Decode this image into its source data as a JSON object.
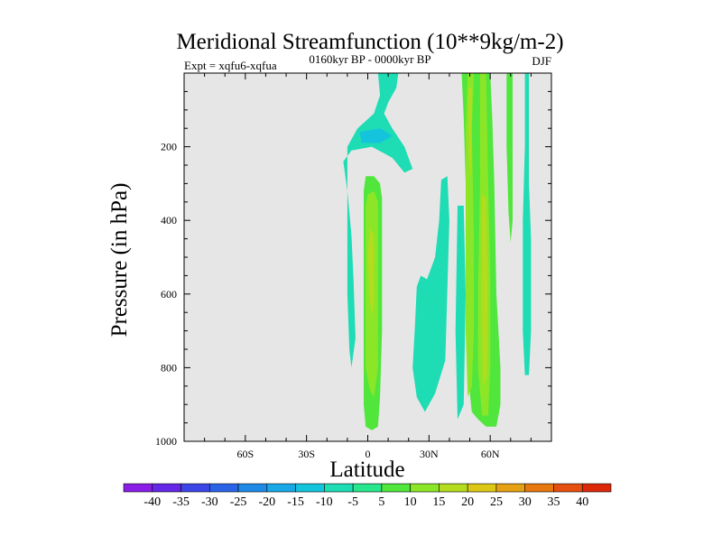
{
  "chart_data": {
    "type": "contour",
    "title": "Meridional Streamfunction (10**9kg/m-2)",
    "left_label": "Expt = xqfu6-xqfua",
    "center_label": "0160kyr BP - 0000kyr BP",
    "right_label": "DJF",
    "xlabel": "Latitude",
    "ylabel": "Pressure (in hPa)",
    "xlim": [
      -90,
      90
    ],
    "ylim": [
      1000,
      0
    ],
    "x_ticks": [
      -60,
      -30,
      0,
      30,
      60
    ],
    "x_tick_labels": [
      "60S",
      "30S",
      "0",
      "30N",
      "60N"
    ],
    "y_ticks": [
      200,
      400,
      600,
      800,
      1000
    ],
    "y_tick_labels": [
      "200",
      "400",
      "600",
      "800",
      "1000"
    ],
    "background_color": "#e6e6e6",
    "colorbar": {
      "colors": [
        "#8a1ee6",
        "#6428e6",
        "#3c46e6",
        "#2a64e6",
        "#1e8ae6",
        "#18a8e6",
        "#14c4dc",
        "#1edcb4",
        "#28e68c",
        "#50e63c",
        "#8ce628",
        "#b4dc1e",
        "#dcc814",
        "#e6a014",
        "#e6780f",
        "#e6500f",
        "#dc2808"
      ],
      "labels": [
        "-40",
        "-35",
        "-30",
        "-25",
        "-20",
        "-15",
        "-10",
        "-5",
        "5",
        "10",
        "15",
        "20",
        "25",
        "30",
        "35",
        "40"
      ]
    },
    "regions": [
      {
        "name": "tropical-upper-neg-region",
        "level": "-10 to -5",
        "color": "#1edcb4",
        "points": [
          [
            5,
            0
          ],
          [
            15,
            0
          ],
          [
            14,
            40
          ],
          [
            10,
            80
          ],
          [
            8,
            110
          ],
          [
            12,
            150
          ],
          [
            18,
            200
          ],
          [
            22,
            260
          ],
          [
            18,
            270
          ],
          [
            12,
            230
          ],
          [
            2,
            200
          ],
          [
            -8,
            210
          ],
          [
            -12,
            240
          ],
          [
            -10,
            320
          ],
          [
            -8,
            440
          ],
          [
            -7,
            560
          ],
          [
            -6,
            720
          ],
          [
            -8,
            800
          ],
          [
            -9,
            750
          ],
          [
            -10,
            600
          ],
          [
            -10,
            400
          ],
          [
            -10,
            200
          ],
          [
            -5,
            150
          ],
          [
            3,
            110
          ],
          [
            6,
            60
          ]
        ]
      },
      {
        "name": "tropical-upper-neg-core",
        "level": "-15 to -10",
        "color": "#14c4dc",
        "points": [
          [
            -4,
            160
          ],
          [
            6,
            150
          ],
          [
            12,
            170
          ],
          [
            6,
            190
          ],
          [
            -3,
            190
          ]
        ]
      },
      {
        "name": "equatorial-pos-region",
        "level": "5 to 10",
        "color": "#50e63c",
        "points": [
          [
            -1,
            280
          ],
          [
            3,
            280
          ],
          [
            6,
            300
          ],
          [
            7,
            340
          ],
          [
            7,
            500
          ],
          [
            7,
            700
          ],
          [
            6,
            880
          ],
          [
            5,
            960
          ],
          [
            2,
            970
          ],
          [
            -1,
            960
          ],
          [
            -2,
            900
          ],
          [
            -2,
            700
          ],
          [
            -2,
            500
          ],
          [
            -2,
            320
          ]
        ]
      },
      {
        "name": "equatorial-pos-mid",
        "level": "10 to 15",
        "color": "#8ce628",
        "points": [
          [
            0,
            330
          ],
          [
            3,
            320
          ],
          [
            5,
            350
          ],
          [
            5,
            550
          ],
          [
            5,
            800
          ],
          [
            3,
            880
          ],
          [
            1,
            860
          ],
          [
            -1,
            800
          ],
          [
            -1,
            550
          ],
          [
            -1,
            360
          ]
        ]
      },
      {
        "name": "equatorial-pos-core",
        "level": "15 to 20",
        "color": "#b4dc1e",
        "points": [
          [
            1,
            420
          ],
          [
            3,
            440
          ],
          [
            3,
            620
          ],
          [
            2,
            660
          ],
          [
            1,
            620
          ],
          [
            0,
            500
          ]
        ]
      },
      {
        "name": "subtropical-neg-region",
        "level": "-10 to -5",
        "color": "#1edcb4",
        "points": [
          [
            36,
            290
          ],
          [
            39,
            280
          ],
          [
            40,
            400
          ],
          [
            38,
            780
          ],
          [
            33,
            870
          ],
          [
            28,
            920
          ],
          [
            24,
            880
          ],
          [
            22,
            800
          ],
          [
            23,
            700
          ],
          [
            24,
            580
          ],
          [
            26,
            550
          ],
          [
            29,
            560
          ],
          [
            33,
            500
          ],
          [
            35,
            400
          ]
        ]
      },
      {
        "name": "midlat-neg-region",
        "level": "-10 to -5",
        "color": "#1edcb4",
        "points": [
          [
            44,
            360
          ],
          [
            47,
            360
          ],
          [
            48,
            600
          ],
          [
            47,
            900
          ],
          [
            44,
            940
          ],
          [
            43,
            700
          ]
        ]
      },
      {
        "name": "midlat-north-pos-region",
        "level": "5 to 10",
        "color": "#50e63c",
        "points": [
          [
            46,
            0
          ],
          [
            60,
            0
          ],
          [
            61,
            120
          ],
          [
            62,
            300
          ],
          [
            63,
            600
          ],
          [
            65,
            800
          ],
          [
            65,
            900
          ],
          [
            63,
            960
          ],
          [
            58,
            960
          ],
          [
            54,
            940
          ],
          [
            51,
            920
          ],
          [
            50,
            870
          ],
          [
            50,
            700
          ],
          [
            49,
            500
          ],
          [
            48,
            300
          ],
          [
            47,
            120
          ]
        ]
      },
      {
        "name": "midlat-north-pos-left-mid",
        "level": "10 to 15",
        "color": "#8ce628",
        "points": [
          [
            49,
            0
          ],
          [
            52,
            0
          ],
          [
            51,
            150
          ],
          [
            52,
            450
          ],
          [
            52,
            700
          ],
          [
            51,
            850
          ],
          [
            49,
            880
          ],
          [
            48,
            700
          ],
          [
            48,
            400
          ],
          [
            48,
            150
          ]
        ]
      },
      {
        "name": "midlat-north-pos-left-core",
        "level": "15 to 20",
        "color": "#b4dc1e",
        "points": [
          [
            49.5,
            40
          ],
          [
            51,
            40
          ],
          [
            50.8,
            200
          ],
          [
            50.5,
            280
          ],
          [
            49.5,
            220
          ]
        ]
      },
      {
        "name": "midlat-north-pos-right-mid",
        "level": "10 to 15",
        "color": "#8ce628",
        "points": [
          [
            55,
            0
          ],
          [
            58,
            0
          ],
          [
            59,
            300
          ],
          [
            60,
            550
          ],
          [
            60,
            800
          ],
          [
            59,
            930
          ],
          [
            56,
            930
          ],
          [
            54,
            800
          ],
          [
            54,
            600
          ],
          [
            55,
            300
          ]
        ]
      },
      {
        "name": "midlat-north-pos-right-core",
        "level": "15 to 20",
        "color": "#b4dc1e",
        "points": [
          [
            56,
            330
          ],
          [
            58,
            340
          ],
          [
            58.6,
            550
          ],
          [
            58.4,
            820
          ],
          [
            56.6,
            850
          ],
          [
            55.8,
            640
          ]
        ]
      },
      {
        "name": "high-lat-pos-region",
        "level": "5 to 10",
        "color": "#50e63c",
        "points": [
          [
            68,
            0
          ],
          [
            71,
            0
          ],
          [
            71,
            200
          ],
          [
            71,
            400
          ],
          [
            70,
            460
          ],
          [
            69,
            380
          ],
          [
            68,
            200
          ]
        ]
      },
      {
        "name": "high-lat-neg-region",
        "level": "-10 to -5",
        "color": "#1edcb4",
        "points": [
          [
            77,
            0
          ],
          [
            79,
            0
          ],
          [
            79,
            300
          ],
          [
            80,
            450
          ],
          [
            80,
            700
          ],
          [
            79,
            820
          ],
          [
            77,
            820
          ],
          [
            76,
            700
          ],
          [
            76,
            400
          ],
          [
            77,
            200
          ]
        ]
      }
    ]
  }
}
